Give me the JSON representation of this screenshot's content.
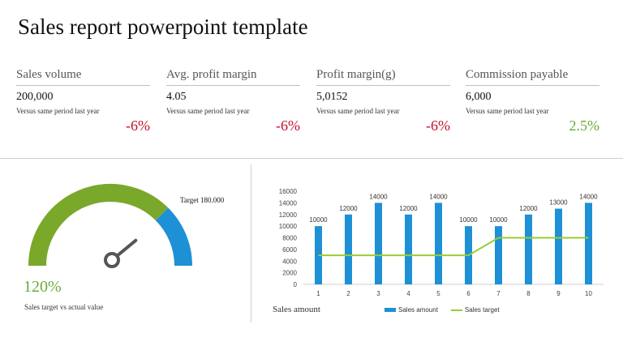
{
  "title": "Sales report powerpoint template",
  "kpis": [
    {
      "label": "Sales volume",
      "value": "200,000",
      "note": "Versus same period last year",
      "change": "-6%",
      "trend": "negative"
    },
    {
      "label": "Avg. profit margin",
      "value": "4.05",
      "note": "Versus same period last year",
      "change": "-6%",
      "trend": "negative"
    },
    {
      "label": "Profit margin(g)",
      "value": "5,0152",
      "note": "Versus same period last year",
      "change": "-6%",
      "trend": "negative"
    },
    {
      "label": "Commission payable",
      "value": "6,000",
      "note": "Versus same period last year",
      "change": "2.5%",
      "trend": "positive"
    }
  ],
  "gauge": {
    "target_label": "Target 180.000",
    "percent_label": "120%",
    "caption": "Sales target vs actual value",
    "fill_fraction": 0.75,
    "colors": {
      "fill": "#7aa82a",
      "remainder": "#1e90d6",
      "needle": "#555555"
    }
  },
  "chart_data": {
    "type": "bar",
    "title": "Sales amount",
    "categories": [
      "1",
      "2",
      "3",
      "4",
      "5",
      "6",
      "7",
      "8",
      "9",
      "10"
    ],
    "series": [
      {
        "name": "Sales amount",
        "type": "bar",
        "color": "#1e90d6",
        "values": [
          10000,
          12000,
          14000,
          12000,
          14000,
          10000,
          10000,
          12000,
          13000,
          14000
        ]
      },
      {
        "name": "Sales target",
        "type": "line",
        "color": "#99cc33",
        "values": [
          5000,
          5000,
          5000,
          5000,
          5000,
          5000,
          8000,
          8000,
          8000,
          8000
        ]
      }
    ],
    "data_labels": [
      "10000",
      "12000",
      "14000",
      "12000",
      "14000",
      "10000",
      "10000",
      "12000",
      "13000",
      "14000"
    ],
    "y_ticks": [
      "0",
      "2000",
      "4000",
      "6000",
      "8000",
      "10000",
      "12000",
      "14000",
      "16000"
    ],
    "ylim": [
      0,
      16000
    ],
    "grid": false,
    "legend_position": "bottom"
  }
}
